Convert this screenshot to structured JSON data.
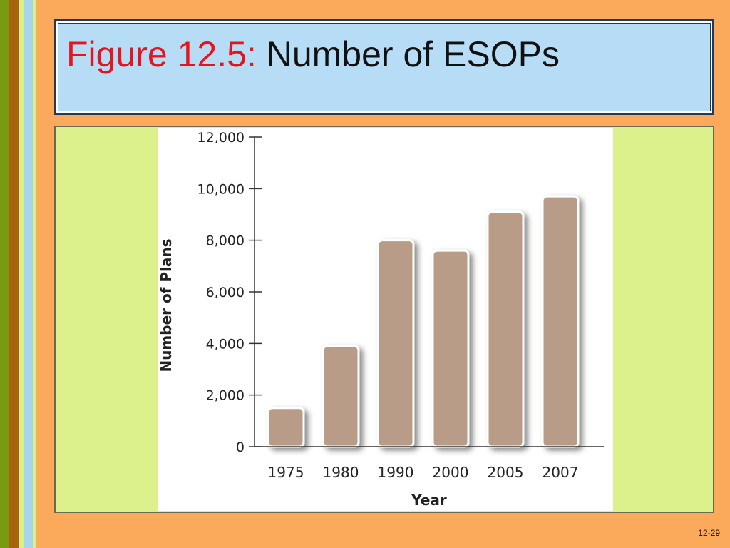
{
  "slide": {
    "title_label": "Figure 12.5:",
    "title_text": "Number of ESOPs",
    "page_number": "12-29"
  },
  "colors": {
    "background": "#fba95a",
    "title_label": "#e8141c",
    "title_box": "#b7dcf6",
    "panel": "#dcf08c",
    "bar": "#b89c88"
  },
  "chart_data": {
    "type": "bar",
    "categories": [
      "1975",
      "1980",
      "1990",
      "2000",
      "2005",
      "2007"
    ],
    "values": [
      1500,
      3900,
      8000,
      7600,
      9100,
      9700
    ],
    "y_ticks": [
      "0",
      "2,000",
      "4,000",
      "6,000",
      "8,000",
      "10,000",
      "12,000"
    ],
    "title": "",
    "xlabel": "Year",
    "ylabel": "Number of Plans",
    "ylim": [
      0,
      12000
    ],
    "grid": false,
    "legend": "none"
  }
}
